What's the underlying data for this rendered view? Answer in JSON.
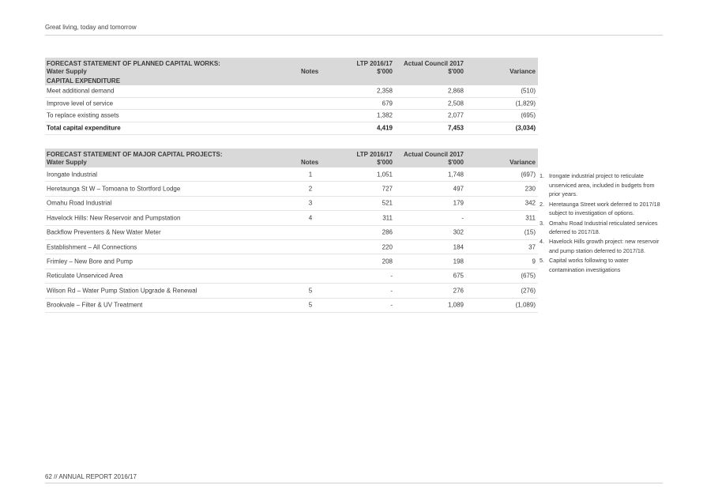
{
  "header": {
    "text": "Great living, today and tomorrow"
  },
  "footer": {
    "text": "62 // ANNUAL REPORT 2016/17"
  },
  "table1": {
    "title_line1": "FORECAST STATEMENT OF PLANNED CAPITAL WORKS:",
    "title_line2": "Water Supply",
    "notes_label": "Notes",
    "ltp_line1": "LTP 2016/17",
    "ltp_line2": "$'000",
    "actual_line1": "Actual Council 2017",
    "actual_line2": "$'000",
    "variance_label": "Variance",
    "section_label": "CAPITAL EXPENDITURE",
    "rows": [
      {
        "label": "Meet additional demand",
        "ltp": "2,358",
        "actual": "2,868",
        "variance": "(510)"
      },
      {
        "label": "Improve level of service",
        "ltp": "679",
        "actual": "2,508",
        "variance": "(1,829)"
      },
      {
        "label": "To replace existing assets",
        "ltp": "1,382",
        "actual": "2,077",
        "variance": "(695)"
      }
    ],
    "total": {
      "label": "Total capital expenditure",
      "ltp": "4,419",
      "actual": "7,453",
      "variance": "(3,034)"
    }
  },
  "table2": {
    "title_line1": "FORECAST STATEMENT OF MAJOR CAPITAL PROJECTS:",
    "title_line2": "Water Supply",
    "notes_label": "Notes",
    "ltp_line1": "LTP 2016/17",
    "ltp_line2": "$'000",
    "actual_line1": "Actual Council 2017",
    "actual_line2": "$'000",
    "variance_label": "Variance",
    "rows": [
      {
        "label": "Irongate Industrial",
        "note": "1",
        "ltp": "1,051",
        "actual": "1,748",
        "variance": "(697)"
      },
      {
        "label": "Heretaunga St W – Tomoana to Stortford Lodge",
        "note": "2",
        "ltp": "727",
        "actual": "497",
        "variance": "230"
      },
      {
        "label": "Omahu Road Industrial",
        "note": "3",
        "ltp": "521",
        "actual": "179",
        "variance": "342"
      },
      {
        "label": "Havelock Hills: New Reservoir and Pumpstation",
        "note": "4",
        "ltp": "311",
        "actual": "-",
        "variance": "311"
      },
      {
        "label": "Backflow Preventers & New Water Meter",
        "note": "",
        "ltp": "286",
        "actual": "302",
        "variance": "(15)"
      },
      {
        "label": "Establishment – All Connections",
        "note": "",
        "ltp": "220",
        "actual": "184",
        "variance": "37"
      },
      {
        "label": "Frimley – New Bore and Pump",
        "note": "",
        "ltp": "208",
        "actual": "198",
        "variance": "9"
      },
      {
        "label": "Reticulate Unserviced Area",
        "note": "",
        "ltp": "-",
        "actual": "675",
        "variance": "(675)"
      },
      {
        "label": "Wilson Rd – Water Pump Station Upgrade & Renewal",
        "note": "5",
        "ltp": "-",
        "actual": "276",
        "variance": "(276)"
      },
      {
        "label": "Brookvale – Filter & UV Treatment",
        "note": "5",
        "ltp": "-",
        "actual": "1,089",
        "variance": "(1,089)"
      }
    ]
  },
  "notes": [
    {
      "num": "1.",
      "text": "Irongate industrial project to reticulate unserviced area, included in budgets from prior years."
    },
    {
      "num": "2.",
      "text": "Heretaunga Street work deferred to 2017/18 subject to investigation of options."
    },
    {
      "num": "3.",
      "text": "Omahu Road Industrial reticulated services deferred to 2017/18."
    },
    {
      "num": "4.",
      "text": "Havelock Hills growth project: new reservoir and pump station deferred to 2017/18."
    },
    {
      "num": "5.",
      "text": "Capital works following to water contamination investigations"
    }
  ]
}
